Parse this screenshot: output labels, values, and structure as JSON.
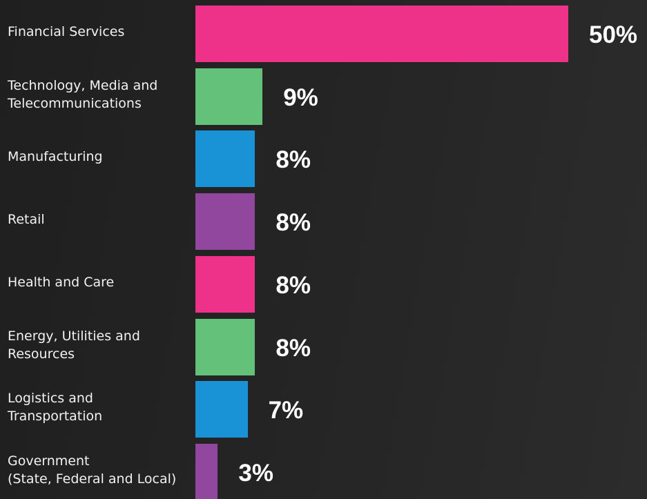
{
  "chart_data": {
    "type": "bar",
    "orientation": "horizontal",
    "categories": [
      "Financial Services",
      "Technology, Media and\nTelecommunications",
      "Manufacturing",
      "Retail",
      "Health and Care",
      "Energy, Utilities and\nResources",
      "Logistics and\nTransportation",
      "Government\n(State, Federal and Local)"
    ],
    "values": [
      50,
      9,
      8,
      8,
      8,
      8,
      7,
      3
    ],
    "value_labels": [
      "50%",
      "9%",
      "8%",
      "8%",
      "8%",
      "8%",
      "7%",
      "3%"
    ],
    "colors": [
      "#ee3289",
      "#64c17a",
      "#1a93d6",
      "#92479e",
      "#ee3289",
      "#64c17a",
      "#1a93d6",
      "#92479e"
    ]
  }
}
